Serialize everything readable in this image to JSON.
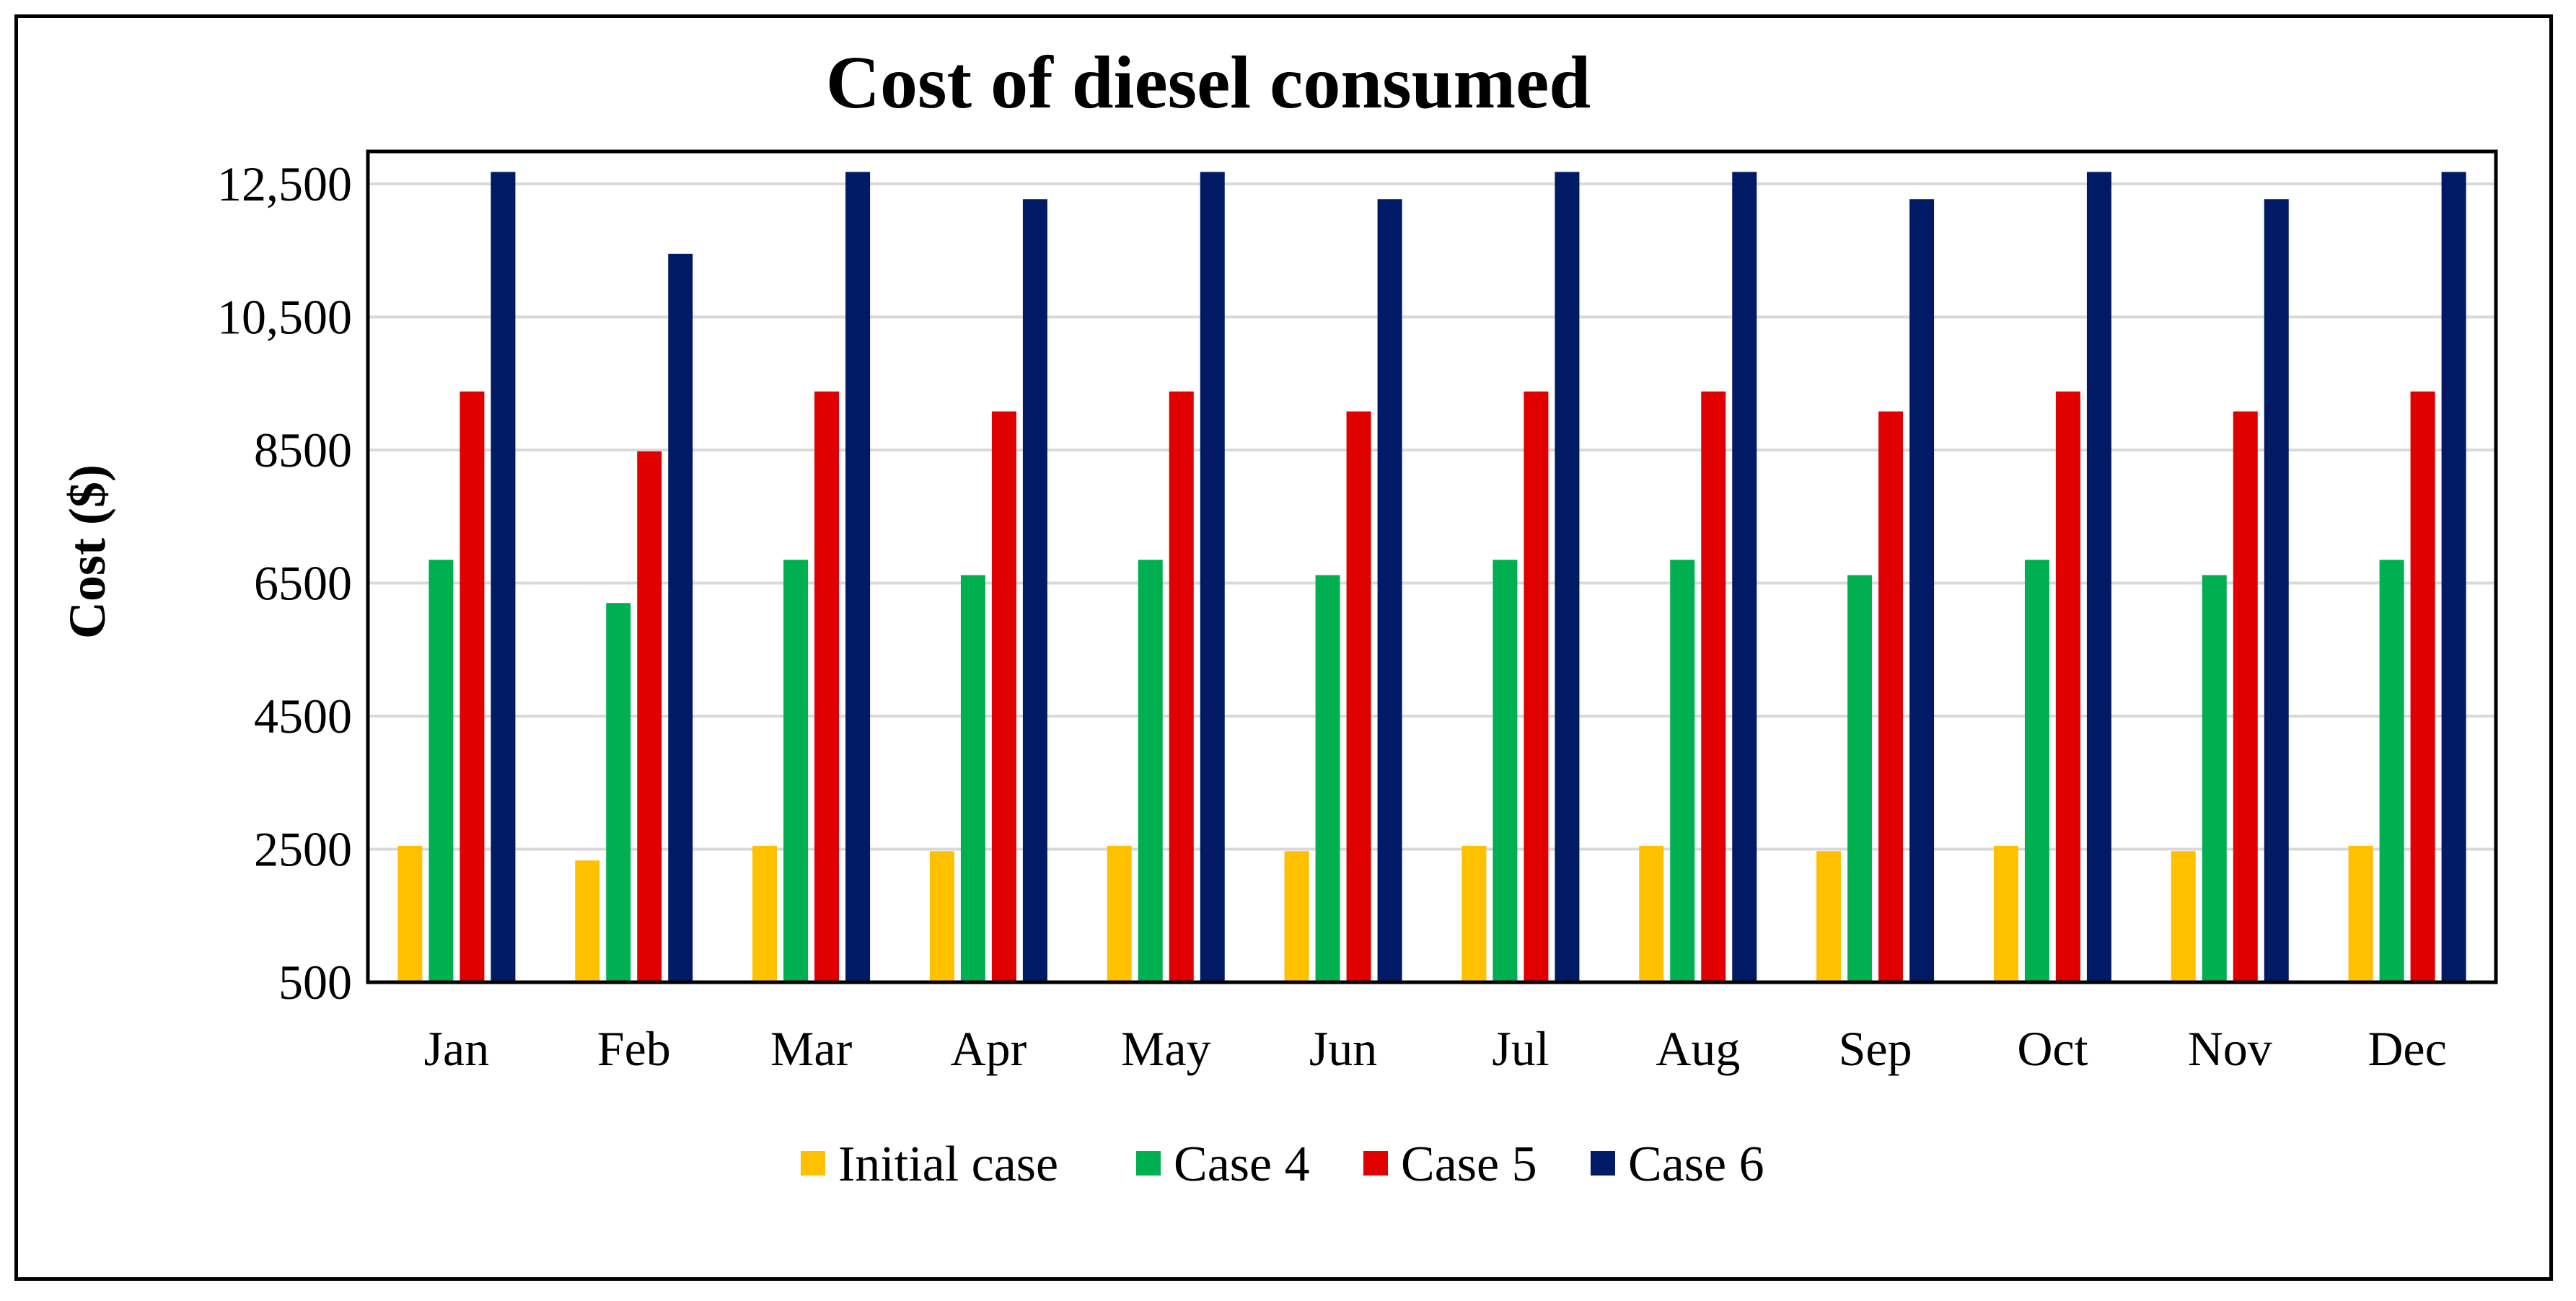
{
  "chart_data": {
    "type": "bar",
    "title": "Cost of diesel consumed",
    "xlabel": "",
    "ylabel": "Cost ($)",
    "ylim": [
      500,
      12500
    ],
    "yticks": [
      500,
      2500,
      4500,
      6500,
      8500,
      10500,
      12500
    ],
    "ytick_labels": [
      "500",
      "2500",
      "4500",
      "6500",
      "8500",
      "10,500",
      "12,500"
    ],
    "grid": true,
    "legend_position": "bottom",
    "categories": [
      "Jan",
      "Feb",
      "Mar",
      "Apr",
      "May",
      "Jun",
      "Jul",
      "Aug",
      "Sep",
      "Oct",
      "Nov",
      "Dec"
    ],
    "series": [
      {
        "name": "Initial case",
        "color": "#FFC000",
        "values": [
          2550,
          2330,
          2550,
          2470,
          2550,
          2470,
          2550,
          2550,
          2470,
          2550,
          2470,
          2550
        ]
      },
      {
        "name": "Case 4",
        "color": "#00B050",
        "values": [
          6850,
          6200,
          6850,
          6620,
          6850,
          6620,
          6850,
          6850,
          6620,
          6850,
          6620,
          6850
        ]
      },
      {
        "name": "Case 5",
        "color": "#E00000",
        "values": [
          9380,
          8480,
          9380,
          9080,
          9380,
          9080,
          9380,
          9380,
          9080,
          9380,
          9080,
          9380
        ]
      },
      {
        "name": "Case 6",
        "color": "#001A66",
        "values": [
          12680,
          11450,
          12680,
          12270,
          12680,
          12270,
          12680,
          12680,
          12270,
          12680,
          12270,
          12680
        ]
      }
    ]
  }
}
